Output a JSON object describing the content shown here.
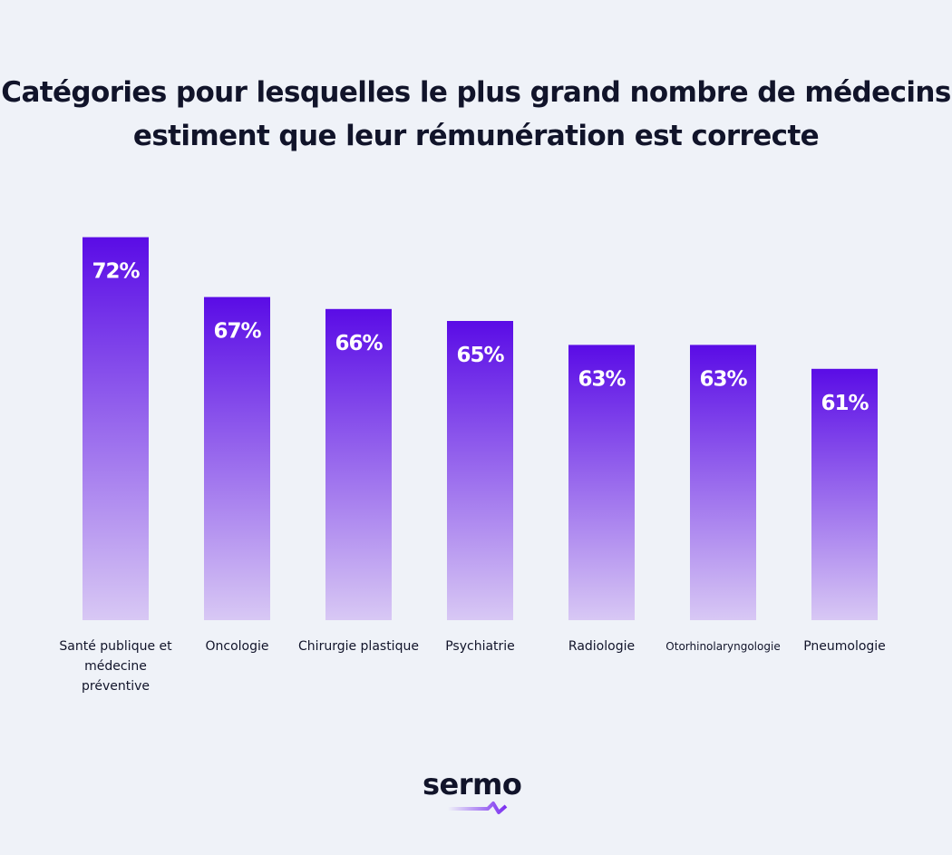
{
  "chart_data": {
    "type": "bar",
    "title": "Catégories pour lesquelles le plus grand nombre de médecins estiment que leur rémunération est correcte",
    "categories": [
      "Santé publique et médecine préventive",
      "Oncologie",
      "Chirurgie plastique",
      "Psychiatrie",
      "Radiologie",
      "Otorhinolaryngologie",
      "Pneumologie"
    ],
    "values": [
      72,
      67,
      66,
      65,
      63,
      63,
      61
    ],
    "data_labels": [
      "72%",
      "67%",
      "66%",
      "65%",
      "63%",
      "63%",
      "61%"
    ],
    "xlabel": "",
    "ylabel": "",
    "grid": false,
    "colors": {
      "bar_top": "#5a0ce6",
      "bar_bottom": "#d8c8f4",
      "background": "#eff2f8",
      "text": "#11142a"
    }
  },
  "logo": {
    "text": "sermo",
    "accent": "#7b2ff0"
  }
}
